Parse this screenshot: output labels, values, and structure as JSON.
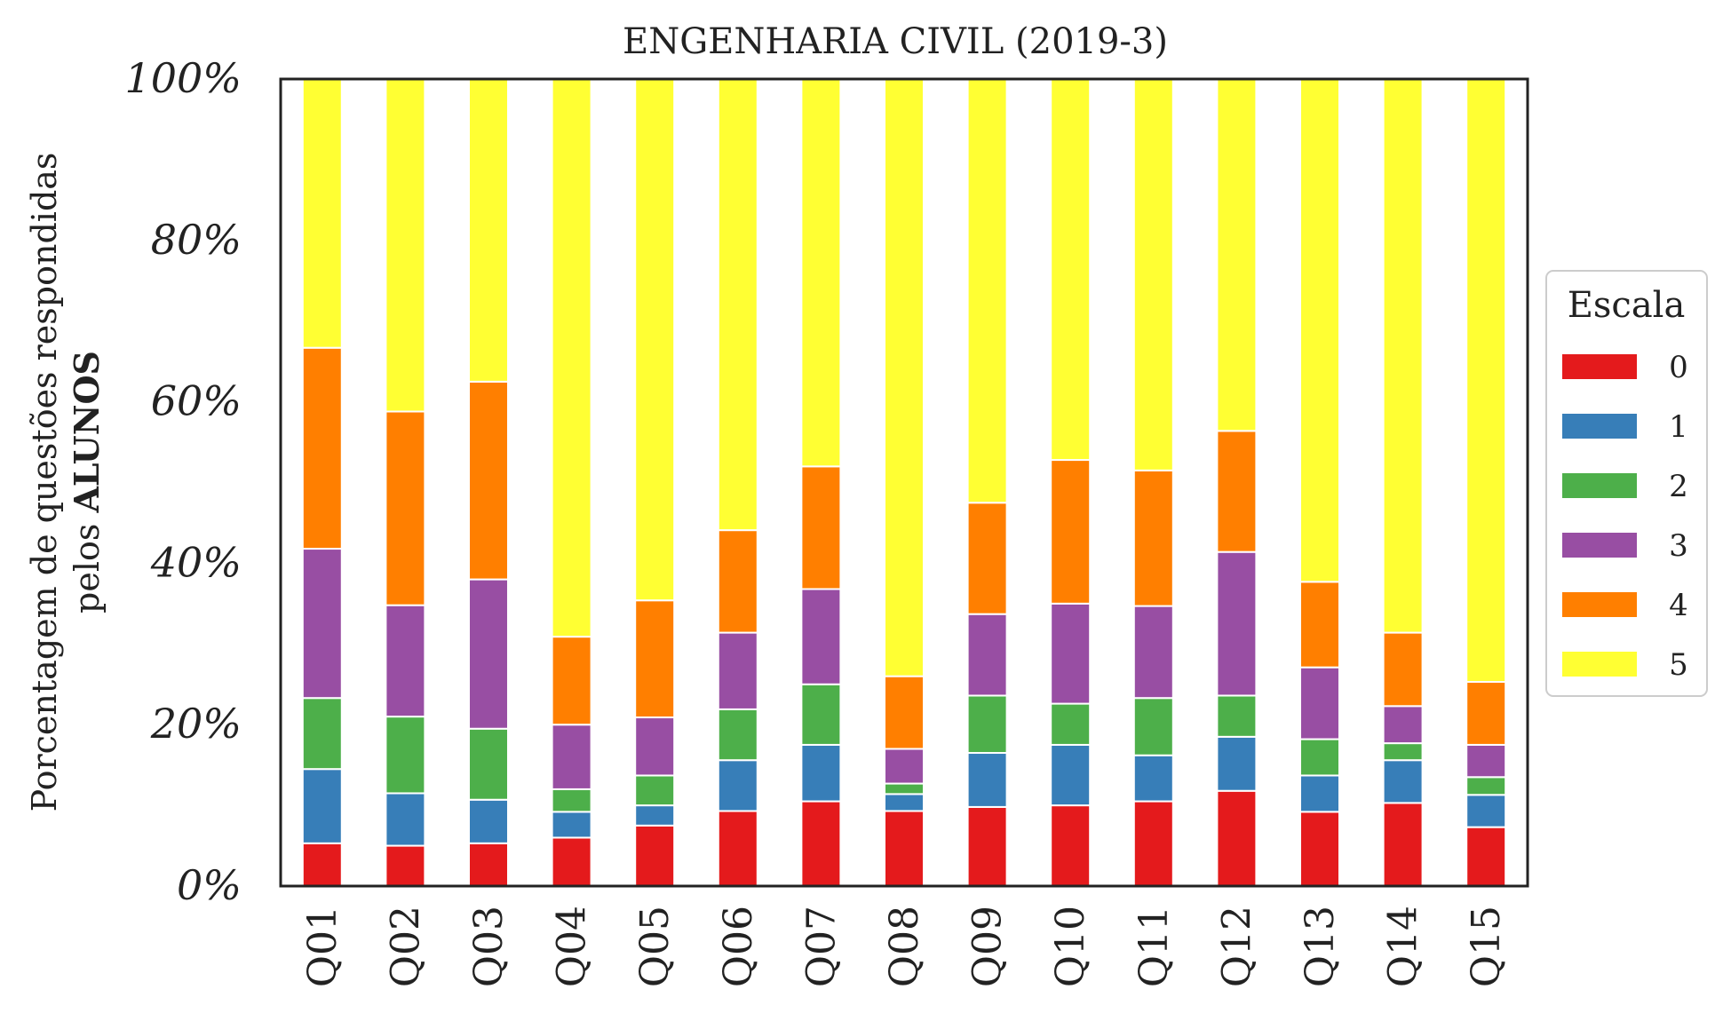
{
  "chart_data": {
    "type": "bar",
    "stacked": true,
    "title": "ENGENHARIA CIVIL (2019-3)",
    "ylabel_line1": "Porcentagem de questões respondidas",
    "ylabel_line2_prefix": "pelos ",
    "ylabel_line2_bold": "ALUNOS",
    "ylim": [
      0,
      100
    ],
    "yticks": [
      "0%",
      "20%",
      "40%",
      "60%",
      "80%",
      "100%"
    ],
    "categories": [
      "Q01",
      "Q02",
      "Q03",
      "Q04",
      "Q05",
      "Q06",
      "Q07",
      "Q08",
      "Q09",
      "Q10",
      "Q11",
      "Q12",
      "Q13",
      "Q14",
      "Q15"
    ],
    "series": [
      {
        "name": "0",
        "color": "#e41a1c",
        "values": [
          5.3,
          5.0,
          5.3,
          6.0,
          7.5,
          9.3,
          10.5,
          9.3,
          9.8,
          10.0,
          10.5,
          11.8,
          9.2,
          10.3,
          7.3
        ]
      },
      {
        "name": "1",
        "color": "#377eb8",
        "values": [
          9.2,
          6.5,
          5.4,
          3.2,
          2.5,
          6.3,
          7.0,
          2.1,
          6.7,
          7.5,
          5.7,
          6.7,
          4.5,
          5.3,
          4.0
        ]
      },
      {
        "name": "2",
        "color": "#4daf4a",
        "values": [
          8.8,
          9.5,
          8.8,
          2.8,
          3.7,
          6.3,
          7.5,
          1.3,
          7.1,
          5.1,
          7.1,
          5.1,
          4.5,
          2.1,
          2.2
        ]
      },
      {
        "name": "3",
        "color": "#984ea3",
        "values": [
          18.5,
          13.8,
          18.5,
          8.0,
          7.2,
          9.5,
          11.8,
          4.3,
          10.1,
          12.4,
          11.4,
          17.8,
          8.9,
          4.6,
          4.0
        ]
      },
      {
        "name": "4",
        "color": "#ff7f00",
        "values": [
          24.9,
          24.0,
          24.5,
          10.9,
          14.5,
          12.7,
          15.2,
          9.0,
          13.8,
          17.8,
          16.8,
          15.0,
          10.6,
          9.1,
          7.8
        ]
      },
      {
        "name": "5",
        "color": "#ffff33",
        "values": [
          33.3,
          41.2,
          37.5,
          69.1,
          64.6,
          55.9,
          48.0,
          74.0,
          52.5,
          47.2,
          48.5,
          43.6,
          62.3,
          68.6,
          74.7
        ]
      }
    ],
    "legend": {
      "title": "Escala",
      "placement": "right"
    },
    "grid": false
  }
}
